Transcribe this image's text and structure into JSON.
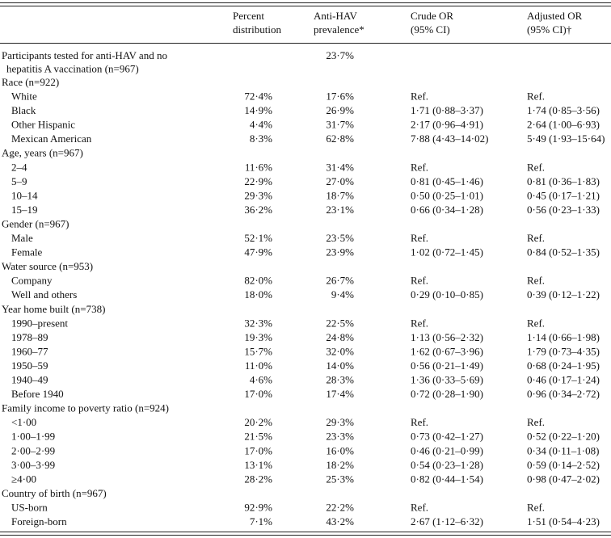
{
  "table": {
    "header": [
      [
        "Percent",
        "distribution"
      ],
      [
        "Anti-HAV",
        "prevalence*"
      ],
      [
        "Crude OR",
        "(95% CI)"
      ],
      [
        "Adjusted OR",
        "(95% CI)†"
      ]
    ],
    "overall": {
      "lines": [
        "Participants tested for anti-HAV and no",
        "hepatitis A vaccination (n=967)"
      ],
      "prevalence": "23·7%"
    },
    "sections": [
      {
        "title": "Race (n=922)",
        "rows": [
          [
            "White",
            "72·4%",
            "17·6%",
            "Ref.",
            "Ref."
          ],
          [
            "Black",
            "14·9%",
            "26·9%",
            "1·71 (0·88–3·37)",
            "1·74 (0·85–3·56)"
          ],
          [
            "Other Hispanic",
            "4·4%",
            "31·7%",
            "2·17 (0·96–4·91)",
            "2·64 (1·00–6·93)"
          ],
          [
            "Mexican American",
            "8·3%",
            "62·8%",
            "7·88 (4·43–14·02)",
            "5·49 (1·93–15·64)"
          ]
        ]
      },
      {
        "title": "Age, years (n=967)",
        "rows": [
          [
            "2–4",
            "11·6%",
            "31·4%",
            "Ref.",
            "Ref."
          ],
          [
            "5–9",
            "22·9%",
            "27·0%",
            "0·81 (0·45–1·46)",
            "0·81 (0·36–1·83)"
          ],
          [
            "10–14",
            "29·3%",
            "18·7%",
            "0·50 (0·25–1·01)",
            "0·45 (0·17–1·21)"
          ],
          [
            "15–19",
            "36·2%",
            "23·1%",
            "0·66 (0·34–1·28)",
            "0·56 (0·23–1·33)"
          ]
        ]
      },
      {
        "title": "Gender (n=967)",
        "rows": [
          [
            "Male",
            "52·1%",
            "23·5%",
            "Ref.",
            "Ref."
          ],
          [
            "Female",
            "47·9%",
            "23·9%",
            "1·02 (0·72–1·45)",
            "0·84 (0·52–1·35)"
          ]
        ]
      },
      {
        "title": "Water source (n=953)",
        "rows": [
          [
            "Company",
            "82·0%",
            "26·7%",
            "Ref.",
            "Ref."
          ],
          [
            "Well and others",
            "18·0%",
            "9·4%",
            "0·29 (0·10–0·85)",
            "0·39 (0·12–1·22)"
          ]
        ]
      },
      {
        "title": "Year home built (n=738)",
        "rows": [
          [
            "1990–present",
            "32·3%",
            "22·5%",
            "Ref.",
            "Ref."
          ],
          [
            "1978–89",
            "19·3%",
            "24·8%",
            "1·13 (0·56–2·32)",
            "1·14 (0·66–1·98)"
          ],
          [
            "1960–77",
            "15·7%",
            "32·0%",
            "1·62 (0·67–3·96)",
            "1·79 (0·73–4·35)"
          ],
          [
            "1950–59",
            "11·0%",
            "14·0%",
            "0·56 (0·21–1·49)",
            "0·68 (0·24–1·95)"
          ],
          [
            "1940–49",
            "4·6%",
            "28·3%",
            "1·36 (0·33–5·69)",
            "0·46 (0·17–1·24)"
          ],
          [
            "Before 1940",
            "17·0%",
            "17·4%",
            "0·72 (0·28–1·90)",
            "0·96 (0·34–2·72)"
          ]
        ]
      },
      {
        "title": "Family income to poverty ratio (n=924)",
        "rows": [
          [
            "<1·00",
            "20·2%",
            "29·3%",
            "Ref.",
            "Ref."
          ],
          [
            "1·00–1·99",
            "21·5%",
            "23·3%",
            "0·73 (0·42–1·27)",
            "0·52 (0·22–1·20)"
          ],
          [
            "2·00–2·99",
            "17·0%",
            "16·0%",
            "0·46 (0·21–0·99)",
            "0·34 (0·11–1·08)"
          ],
          [
            "3·00–3·99",
            "13·1%",
            "18·2%",
            "0·54 (0·23–1·28)",
            "0·59 (0·14–2·52)"
          ],
          [
            "≥4·00",
            "28·2%",
            "25·3%",
            "0·82 (0·44–1·54)",
            "0·98 (0·47–2·02)"
          ]
        ]
      },
      {
        "title": "Country of birth (n=967)",
        "rows": [
          [
            "US-born",
            "92·9%",
            "22·2%",
            "Ref.",
            "Ref."
          ],
          [
            "Foreign-born",
            "7·1%",
            "43·2%",
            "2·67 (1·12–6·32)",
            "1·51 (0·54–4·23)"
          ]
        ]
      }
    ]
  }
}
